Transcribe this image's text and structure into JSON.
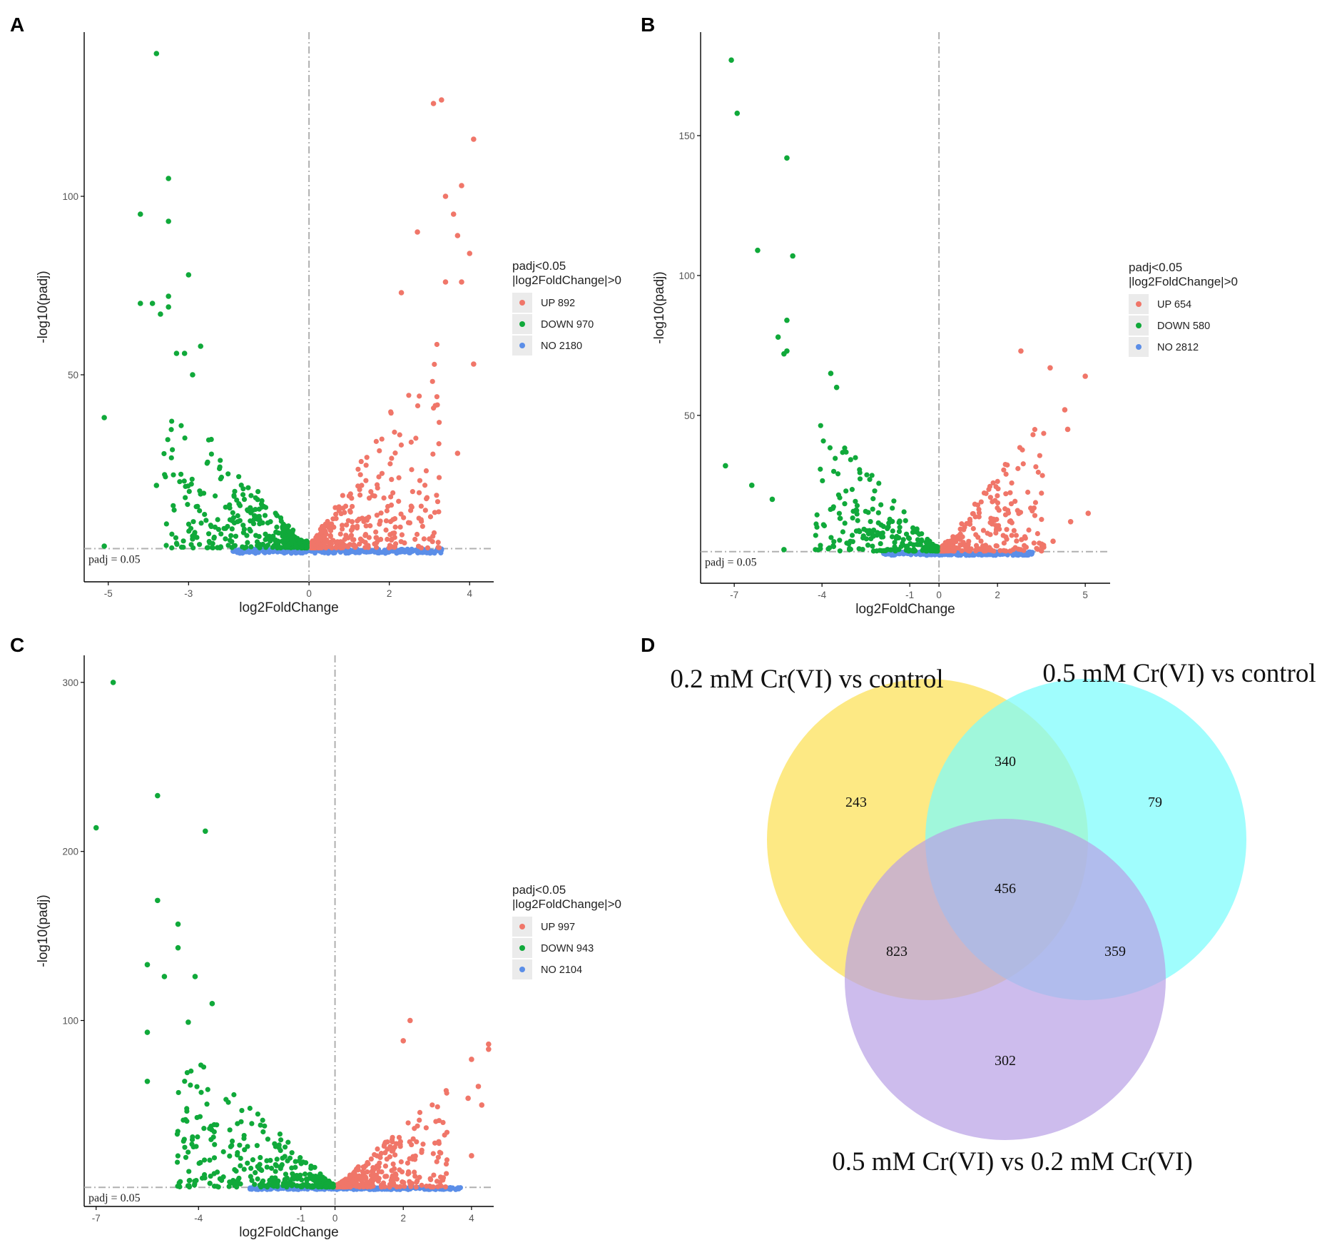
{
  "chart_data": [
    {
      "panel": "A",
      "type": "scatter",
      "xlabel": "log2FoldChange",
      "ylabel": "-log10(padj)",
      "xlim": [
        -5.6,
        4.6
      ],
      "ylim": [
        -8,
        146
      ],
      "xticks": [
        -5,
        -3,
        0,
        2,
        4
      ],
      "yticks": [
        50,
        100
      ],
      "threshold_label": "padj = 0.05",
      "legend": {
        "title_line1": "padj<0.05",
        "title_line2": "|log2FoldChange|>0",
        "entries": [
          {
            "label": "UP 892",
            "color": "#f07669"
          },
          {
            "label": "DOWN 970",
            "color": "#10a93a"
          },
          {
            "label": "NO 2180",
            "color": "#5b8ee8"
          }
        ]
      },
      "highlight_points": {
        "DOWN": [
          [
            -3.8,
            140
          ],
          [
            -3.5,
            105
          ],
          [
            -4.2,
            95
          ],
          [
            -3.5,
            93
          ],
          [
            -3.0,
            78
          ],
          [
            -5.1,
            38
          ],
          [
            -5.1,
            2
          ],
          [
            -4.2,
            70
          ],
          [
            -3.9,
            70
          ],
          [
            -3.5,
            72
          ],
          [
            -3.5,
            69
          ],
          [
            -3.7,
            67
          ],
          [
            -3.3,
            56
          ],
          [
            -3.1,
            56
          ],
          [
            -2.7,
            58
          ],
          [
            -2.9,
            50
          ],
          [
            -3.8,
            19
          ],
          [
            -2.9,
            4
          ]
        ],
        "UP": [
          [
            3.1,
            126
          ],
          [
            3.3,
            127
          ],
          [
            4.1,
            116
          ],
          [
            3.8,
            103
          ],
          [
            3.4,
            100
          ],
          [
            3.6,
            95
          ],
          [
            2.7,
            90
          ],
          [
            3.7,
            89
          ],
          [
            4.0,
            84
          ],
          [
            3.4,
            76
          ],
          [
            3.8,
            76
          ],
          [
            2.3,
            73
          ],
          [
            4.1,
            53
          ],
          [
            3.7,
            28
          ],
          [
            3.0,
            4
          ]
        ]
      },
      "bulk": {
        "up_xrange": [
          0.0,
          3.2
        ],
        "down_xrange": [
          -3.6,
          0.0
        ],
        "up_ymax": 60,
        "down_ymax": 45,
        "up_n": 320,
        "down_n": 330,
        "no_xrange": [
          -1.9,
          3.3
        ],
        "no_n": 260
      }
    },
    {
      "panel": "B",
      "type": "scatter",
      "xlabel": "log2FoldChange",
      "ylabel": "-log10(padj)",
      "xlim": [
        -8.15,
        5.85
      ],
      "ylim": [
        -10,
        187
      ],
      "xticks": [
        -7,
        -4,
        -1,
        0,
        2,
        5
      ],
      "yticks": [
        50,
        100,
        150
      ],
      "threshold_label": "padj = 0.05",
      "legend": {
        "title_line1": "padj<0.05",
        "title_line2": "|log2FoldChange|>0",
        "entries": [
          {
            "label": "UP 654",
            "color": "#f07669"
          },
          {
            "label": "DOWN 580",
            "color": "#10a93a"
          },
          {
            "label": "NO 2812",
            "color": "#5b8ee8"
          }
        ]
      },
      "highlight_points": {
        "DOWN": [
          [
            -7.1,
            177
          ],
          [
            -6.9,
            158
          ],
          [
            -5.2,
            142
          ],
          [
            -6.2,
            109
          ],
          [
            -5.0,
            107
          ],
          [
            -5.2,
            84
          ],
          [
            -5.5,
            78
          ],
          [
            -5.3,
            72
          ],
          [
            -5.2,
            73
          ],
          [
            -7.3,
            32
          ],
          [
            -6.4,
            25
          ],
          [
            -5.7,
            20
          ],
          [
            -5.3,
            2
          ],
          [
            -3.7,
            65
          ],
          [
            -3.5,
            60
          ]
        ],
        "UP": [
          [
            2.8,
            73
          ],
          [
            3.8,
            67
          ],
          [
            5.0,
            64
          ],
          [
            4.3,
            52
          ],
          [
            4.4,
            45
          ],
          [
            5.1,
            15
          ],
          [
            4.5,
            12
          ],
          [
            3.9,
            5
          ]
        ]
      },
      "bulk": {
        "up_xrange": [
          0.0,
          3.6
        ],
        "down_xrange": [
          -4.2,
          0.0
        ],
        "up_ymax": 50,
        "down_ymax": 50,
        "up_n": 260,
        "down_n": 230,
        "no_xrange": [
          -1.9,
          3.2
        ],
        "no_n": 260
      }
    },
    {
      "panel": "C",
      "type": "scatter",
      "xlabel": "log2FoldChange",
      "ylabel": "-log10(padj)",
      "xlim": [
        -7.35,
        4.65
      ],
      "ylim": [
        -10,
        316
      ],
      "xticks": [
        -7,
        -4,
        -1,
        0,
        2,
        4
      ],
      "yticks": [
        100,
        200,
        300
      ],
      "threshold_label": "padj = 0.05",
      "legend": {
        "title_line1": "padj<0.05",
        "title_line2": "|log2FoldChange|>0",
        "entries": [
          {
            "label": "UP 997",
            "color": "#f07669"
          },
          {
            "label": "DOWN 943",
            "color": "#10a93a"
          },
          {
            "label": "NO 2104",
            "color": "#5b8ee8"
          }
        ]
      },
      "highlight_points": {
        "DOWN": [
          [
            -6.5,
            300
          ],
          [
            -5.2,
            233
          ],
          [
            -7.0,
            214
          ],
          [
            -3.8,
            212
          ],
          [
            -5.2,
            171
          ],
          [
            -4.6,
            157
          ],
          [
            -4.6,
            143
          ],
          [
            -5.5,
            133
          ],
          [
            -5.0,
            126
          ],
          [
            -4.1,
            126
          ],
          [
            -3.6,
            110
          ],
          [
            -5.5,
            93
          ],
          [
            -5.5,
            64
          ],
          [
            -4.3,
            99
          ]
        ],
        "UP": [
          [
            2.2,
            100
          ],
          [
            4.5,
            86
          ],
          [
            4.5,
            83
          ],
          [
            4.0,
            77
          ],
          [
            4.2,
            61
          ],
          [
            3.9,
            54
          ],
          [
            4.3,
            50
          ],
          [
            2.0,
            88
          ],
          [
            4.0,
            20
          ]
        ]
      },
      "bulk": {
        "up_xrange": [
          0.0,
          3.3
        ],
        "down_xrange": [
          -4.6,
          0.0
        ],
        "up_ymax": 60,
        "down_ymax": 90,
        "up_n": 310,
        "down_n": 330,
        "no_xrange": [
          -2.5,
          3.7
        ],
        "no_n": 260
      }
    },
    {
      "panel": "D",
      "type": "venn",
      "sets": [
        {
          "name": "0.2 mM Cr(VI) vs control",
          "color": "#fde56e"
        },
        {
          "name": "0.5 mM Cr(VI) vs control",
          "color": "#7bfcfc"
        },
        {
          "name": "0.5 mM Cr(VI) vs 0.2 mM Cr(VI)",
          "color": "#c8b3ea"
        }
      ],
      "regions": {
        "A_only": 243,
        "B_only": 79,
        "C_only": 302,
        "A_B": 340,
        "A_C": 823,
        "B_C": 359,
        "A_B_C": 456
      }
    }
  ]
}
